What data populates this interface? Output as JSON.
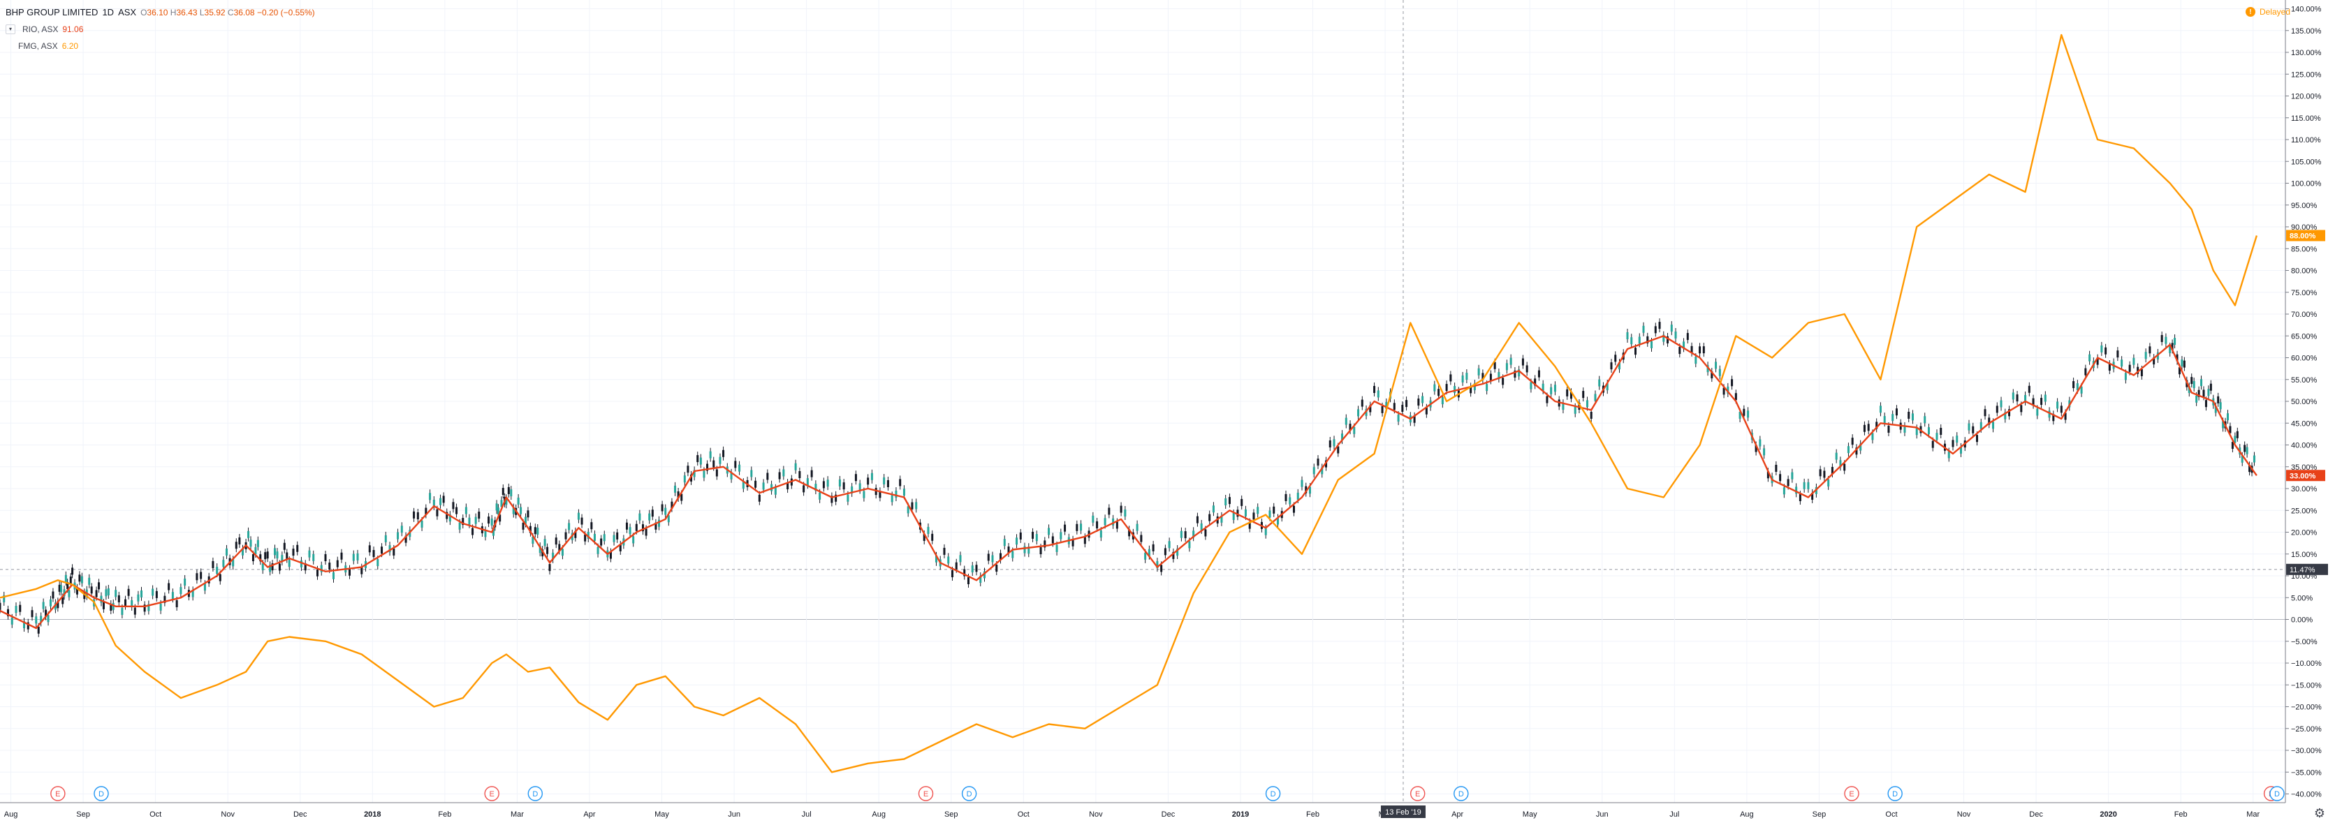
{
  "legend": {
    "main": {
      "symbol": "BHP GROUP LIMITED",
      "interval": "1D",
      "exchange": "ASX",
      "o": "36.10",
      "h": "36.43",
      "l": "35.92",
      "c": "36.08",
      "change": "−0.20 (−0.55%)"
    },
    "compare": [
      {
        "symbol": "RIO, ASX",
        "value": "91.06",
        "color": "#e84118"
      },
      {
        "symbol": "FMG, ASX",
        "value": "6.20",
        "color": "#ff9800"
      }
    ]
  },
  "status": {
    "delayed": "Delayed"
  },
  "crosshair": {
    "date": "13 Feb '19",
    "value": "11.47%"
  },
  "colors": {
    "rio": "#e84118",
    "fmg": "#ff9800",
    "up": "#26a69a",
    "down": "#131722",
    "grid": "#f0f3fa"
  },
  "chart_data": {
    "type": "line",
    "y_unit": "%",
    "ylim": [
      -42,
      142
    ],
    "yticks": [
      "140.00%",
      "135.00%",
      "130.00%",
      "125.00%",
      "120.00%",
      "115.00%",
      "110.00%",
      "105.00%",
      "100.00%",
      "95.00%",
      "90.00%",
      "85.00%",
      "80.00%",
      "75.00%",
      "70.00%",
      "65.00%",
      "60.00%",
      "55.00%",
      "50.00%",
      "45.00%",
      "40.00%",
      "35.00%",
      "30.00%",
      "25.00%",
      "20.00%",
      "15.00%",
      "10.00%",
      "5.00%",
      "0.00%",
      "−5.00%",
      "−10.00%",
      "−15.00%",
      "−20.00%",
      "−25.00%",
      "−30.00%",
      "−35.00%",
      "−40.00%"
    ],
    "xticks": [
      "Aug",
      "Sep",
      "Oct",
      "Nov",
      "Dec",
      "2018",
      "Feb",
      "Mar",
      "Apr",
      "May",
      "Jun",
      "Jul",
      "Aug",
      "Sep",
      "Oct",
      "Nov",
      "Dec",
      "2019",
      "Feb",
      "Mar",
      "Apr",
      "May",
      "Jun",
      "Jul",
      "Aug",
      "Sep",
      "Oct",
      "Nov",
      "Dec",
      "2020",
      "Feb",
      "Mar"
    ],
    "x_range": [
      0,
      31.5
    ],
    "series": [
      {
        "name": "RIO, ASX",
        "color": "#e84118",
        "x": [
          0,
          0.5,
          0.8,
          1,
          1.3,
          1.6,
          2,
          2.5,
          3,
          3.4,
          3.7,
          4,
          4.5,
          5,
          5.5,
          6,
          6.4,
          6.8,
          7,
          7.3,
          7.6,
          8,
          8.4,
          8.8,
          9.2,
          9.6,
          10,
          10.5,
          11,
          11.5,
          12,
          12.5,
          13,
          13.5,
          14,
          14.5,
          15,
          15.5,
          16,
          16.5,
          17,
          17.5,
          18,
          18.5,
          19,
          19.5,
          20,
          20.5,
          21,
          21.5,
          22,
          22.5,
          23,
          23.5,
          24,
          24.5,
          25,
          25.5,
          26,
          26.5,
          27,
          27.5,
          28,
          28.5,
          29,
          29.5,
          30,
          30.3,
          30.6,
          30.9,
          31.2
        ],
        "y": [
          2,
          -2,
          4,
          8,
          5,
          3,
          3,
          5,
          10,
          17,
          12,
          14,
          11,
          12,
          17,
          26,
          22,
          20,
          28,
          21,
          13,
          21,
          15,
          20,
          23,
          34,
          35,
          29,
          32,
          28,
          30,
          28,
          13,
          9,
          16,
          17,
          19,
          23,
          12,
          19,
          25,
          21,
          28,
          40,
          50,
          46,
          52,
          54,
          57,
          50,
          48,
          62,
          65,
          60,
          50,
          32,
          28,
          36,
          45,
          44,
          38,
          45,
          50,
          46,
          60,
          56,
          63,
          52,
          50,
          40,
          33
        ]
      },
      {
        "name": "FMG, ASX",
        "color": "#ff9800",
        "x": [
          0,
          0.5,
          0.8,
          1,
          1.3,
          1.6,
          2,
          2.5,
          3,
          3.4,
          3.7,
          4,
          4.5,
          5,
          5.5,
          6,
          6.4,
          6.8,
          7,
          7.3,
          7.6,
          8,
          8.4,
          8.8,
          9.2,
          9.6,
          10,
          10.5,
          11,
          11.5,
          12,
          12.5,
          13,
          13.5,
          14,
          14.5,
          15,
          15.5,
          16,
          16.5,
          17,
          17.5,
          18,
          18.5,
          19,
          19.5,
          20,
          20.5,
          21,
          21.5,
          22,
          22.5,
          23,
          23.5,
          24,
          24.5,
          25,
          25.5,
          26,
          26.5,
          27,
          27.5,
          28,
          28.5,
          29,
          29.5,
          30,
          30.3,
          30.6,
          30.9,
          31.2
        ],
        "y": [
          5,
          7,
          9,
          8,
          4,
          -6,
          -12,
          -18,
          -15,
          -12,
          -5,
          -4,
          -5,
          -8,
          -14,
          -20,
          -18,
          -10,
          -8,
          -12,
          -11,
          -19,
          -23,
          -15,
          -13,
          -20,
          -22,
          -18,
          -24,
          -35,
          -33,
          -32,
          -28,
          -24,
          -27,
          -24,
          -25,
          -20,
          -15,
          6,
          20,
          24,
          15,
          32,
          38,
          68,
          50,
          55,
          68,
          58,
          45,
          30,
          28,
          40,
          65,
          60,
          68,
          70,
          55,
          90,
          96,
          102,
          98,
          134,
          110,
          108,
          100,
          94,
          80,
          72,
          88
        ]
      }
    ]
  }
}
